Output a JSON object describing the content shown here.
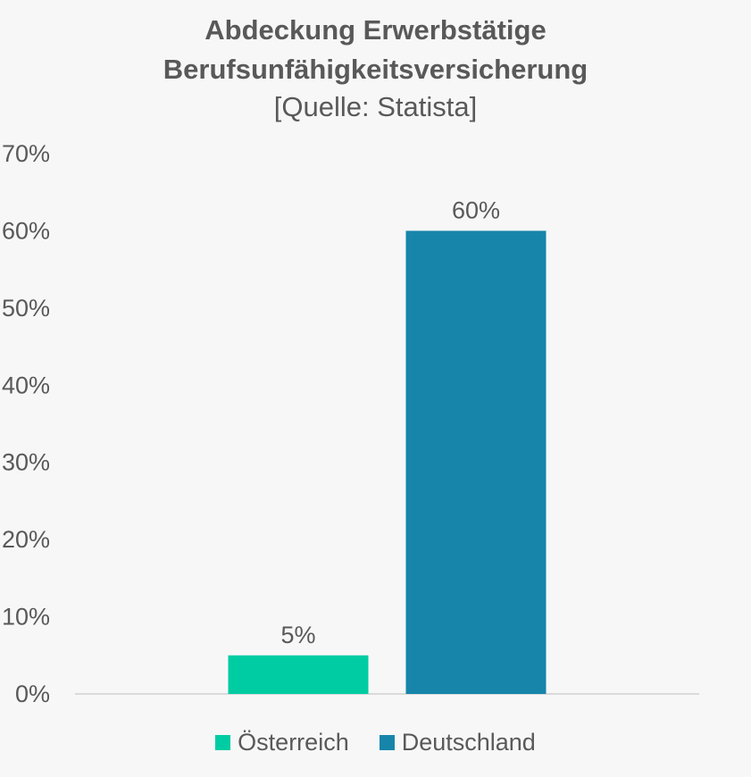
{
  "chart_data": {
    "type": "bar",
    "title_lines": [
      "Abdeckung Erwerbstätige",
      "Berufsunfähigkeitsversicherung"
    ],
    "subtitle": "[Quelle: Statista]",
    "xlabel": "",
    "ylabel": "",
    "ylim": [
      0,
      70
    ],
    "yticks": [
      0,
      10,
      20,
      30,
      40,
      50,
      60,
      70
    ],
    "ytick_labels": [
      "0%",
      "10%",
      "20%",
      "30%",
      "40%",
      "50%",
      "60%",
      "70%"
    ],
    "grid": false,
    "legend_position": "bottom",
    "series": [
      {
        "name": "Österreich",
        "value": 5,
        "label": "5%",
        "color": "#00cca3"
      },
      {
        "name": "Deutschland",
        "value": 60,
        "label": "60%",
        "color": "#1785aa"
      }
    ]
  }
}
